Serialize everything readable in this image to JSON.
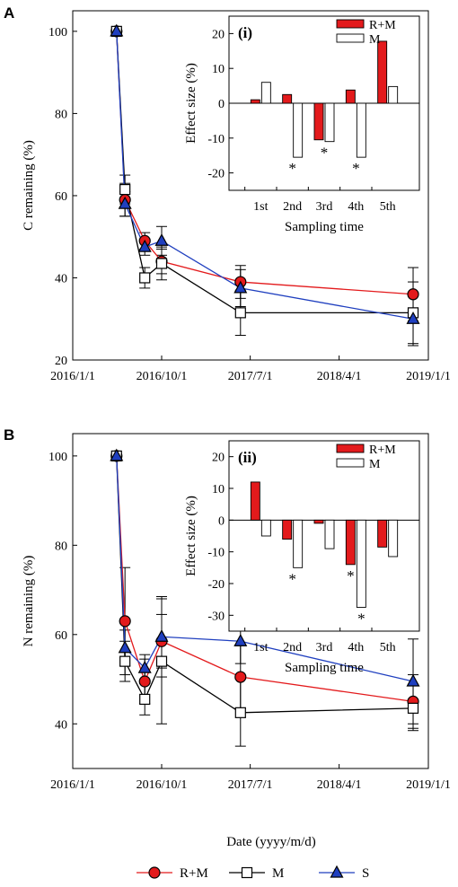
{
  "colors": {
    "rm": "#e31a1c",
    "m": "#ffffff",
    "s": "#1f3fbf",
    "axis": "#000000"
  },
  "shared_x_label": "Date (yyyy/m/d)",
  "legend": [
    {
      "label": "R+M",
      "marker": "circle",
      "color": "#e31a1c"
    },
    {
      "label": "M",
      "marker": "square",
      "color": "#ffffff"
    },
    {
      "label": "S",
      "marker": "triangle",
      "color": "#1f3fbf"
    }
  ],
  "chart_data": [
    {
      "panel": "A",
      "type": "line",
      "ylabel": "C remaining (%)",
      "xlabel": "Date (yyyy/m/d)",
      "ylim": [
        20,
        105
      ],
      "yticks": [
        20,
        40,
        60,
        80,
        100
      ],
      "xlim": [
        "2016-01-01",
        "2019-01-01"
      ],
      "xticks": [
        "2016/1/1",
        "2016/10/1",
        "2017/7/1",
        "2018/4/1",
        "2019/1/1"
      ],
      "x": [
        "2016-05-15",
        "2016-06-10",
        "2016-08-10",
        "2016-10-01",
        "2017-06-01",
        "2018-11-15"
      ],
      "series": [
        {
          "name": "R+M",
          "marker": "circle",
          "values": [
            100,
            59,
            49,
            44,
            39,
            36
          ],
          "err": [
            0,
            4,
            2,
            3,
            4,
            6.5
          ]
        },
        {
          "name": "M",
          "marker": "square",
          "values": [
            100,
            61.5,
            40,
            43.5,
            31.5,
            31.5
          ],
          "err": [
            0,
            3.5,
            2.5,
            4,
            5.5,
            7.5
          ]
        },
        {
          "name": "S",
          "marker": "triangle",
          "values": [
            100,
            58,
            47.5,
            49,
            37.5,
            30
          ],
          "err": [
            0,
            3,
            2,
            3.5,
            4.5,
            6.5
          ]
        }
      ],
      "inset": {
        "tag": "(i)",
        "type": "bar",
        "xlabel": "Sampling time",
        "ylabel": "Effect size (%)",
        "ylim": [
          -25,
          25
        ],
        "yticks": [
          -20,
          -10,
          0,
          10,
          20
        ],
        "categories": [
          "1st",
          "2nd",
          "3rd",
          "4th",
          "5th"
        ],
        "series": [
          {
            "name": "R+M",
            "values": [
              1,
              2.5,
              -10.5,
              3.8,
              17.8
            ]
          },
          {
            "name": "M",
            "values": [
              6,
              -15.5,
              -11,
              -15.5,
              4.8
            ]
          }
        ],
        "significance_marks": [
          "",
          "*",
          "*",
          "*",
          ""
        ]
      }
    },
    {
      "panel": "B",
      "type": "line",
      "ylabel": "N remaining (%)",
      "xlabel": "Date (yyyy/m/d)",
      "ylim": [
        30,
        105
      ],
      "yticks": [
        40,
        60,
        80,
        100
      ],
      "xlim": [
        "2016-01-01",
        "2019-01-01"
      ],
      "xticks": [
        "2016/1/1",
        "2016/10/1",
        "2017/7/1",
        "2018/4/1",
        "2019/1/1"
      ],
      "x": [
        "2016-05-15",
        "2016-06-10",
        "2016-08-10",
        "2016-10-01",
        "2017-06-01",
        "2018-11-15"
      ],
      "series": [
        {
          "name": "R+M",
          "marker": "circle",
          "values": [
            100,
            63,
            49.5,
            58.5,
            50.5,
            45
          ],
          "err": [
            0,
            12,
            5,
            6,
            7,
            6
          ]
        },
        {
          "name": "M",
          "marker": "square",
          "values": [
            100,
            54,
            45.5,
            54,
            42.5,
            43.5
          ],
          "err": [
            0,
            4.5,
            3.5,
            14,
            7.5,
            5
          ]
        },
        {
          "name": "S",
          "marker": "triangle",
          "values": [
            100,
            57,
            52.5,
            59.5,
            58.5,
            49.5
          ],
          "err": [
            0,
            4,
            3,
            9,
            5,
            9.5
          ]
        }
      ],
      "inset": {
        "tag": "(ii)",
        "type": "bar",
        "xlabel": "Sampling time",
        "ylabel": "Effect size (%)",
        "ylim": [
          -35,
          25
        ],
        "yticks": [
          -30,
          -20,
          -10,
          0,
          10,
          20
        ],
        "categories": [
          "1st",
          "2nd",
          "3rd",
          "4th",
          "5th"
        ],
        "series": [
          {
            "name": "R+M",
            "values": [
              12,
              -6,
              -1,
              -14,
              -8.5
            ]
          },
          {
            "name": "M",
            "values": [
              -5,
              -15,
              -9,
              -27.5,
              -11.5
            ]
          }
        ],
        "significance_marks": [
          "",
          "*",
          "",
          "**",
          ""
        ]
      }
    }
  ]
}
